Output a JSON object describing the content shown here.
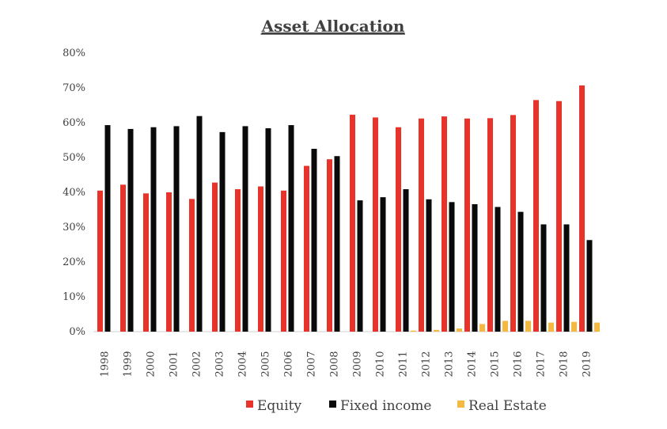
{
  "chart_data": {
    "type": "bar",
    "title": "Asset Allocation",
    "xlabel": "",
    "ylabel": "",
    "ylim": [
      0,
      80
    ],
    "y_ticks": [
      "0%",
      "10%",
      "20%",
      "30%",
      "40%",
      "50%",
      "60%",
      "70%",
      "80%"
    ],
    "y_tick_values": [
      0,
      10,
      20,
      30,
      40,
      50,
      60,
      70,
      80
    ],
    "grid": false,
    "legend_position": "bottom",
    "categories": [
      "1998",
      "1999",
      "2000",
      "2001",
      "2002",
      "2003",
      "2004",
      "2005",
      "2006",
      "2007",
      "2008",
      "2009",
      "2010",
      "2011",
      "2012",
      "2013",
      "2014",
      "2015",
      "2016",
      "2017",
      "2018",
      "2019"
    ],
    "series": [
      {
        "name": "Equity",
        "color": "#e8332a",
        "values": [
          40.5,
          42.2,
          39.7,
          40.0,
          38.1,
          42.8,
          40.9,
          41.7,
          40.5,
          47.6,
          49.5,
          62.3,
          61.5,
          58.7,
          61.2,
          61.8,
          61.2,
          61.3,
          62.2,
          66.5,
          66.2,
          70.7
        ]
      },
      {
        "name": "Fixed income",
        "color": "#0a0a0a",
        "values": [
          59.3,
          58.2,
          58.7,
          59.0,
          61.9,
          57.3,
          59.0,
          58.4,
          59.3,
          52.5,
          50.4,
          37.7,
          38.6,
          40.9,
          38.0,
          37.2,
          36.6,
          35.8,
          34.4,
          30.8,
          30.8,
          26.3
        ]
      },
      {
        "name": "Real Estate",
        "color": "#f5b942",
        "values": [
          0,
          0,
          0,
          0,
          0,
          0,
          0,
          0,
          0,
          0,
          0,
          0,
          0,
          0.3,
          0.5,
          0.9,
          2.2,
          3.1,
          3.1,
          2.6,
          2.8,
          2.6
        ]
      }
    ]
  }
}
